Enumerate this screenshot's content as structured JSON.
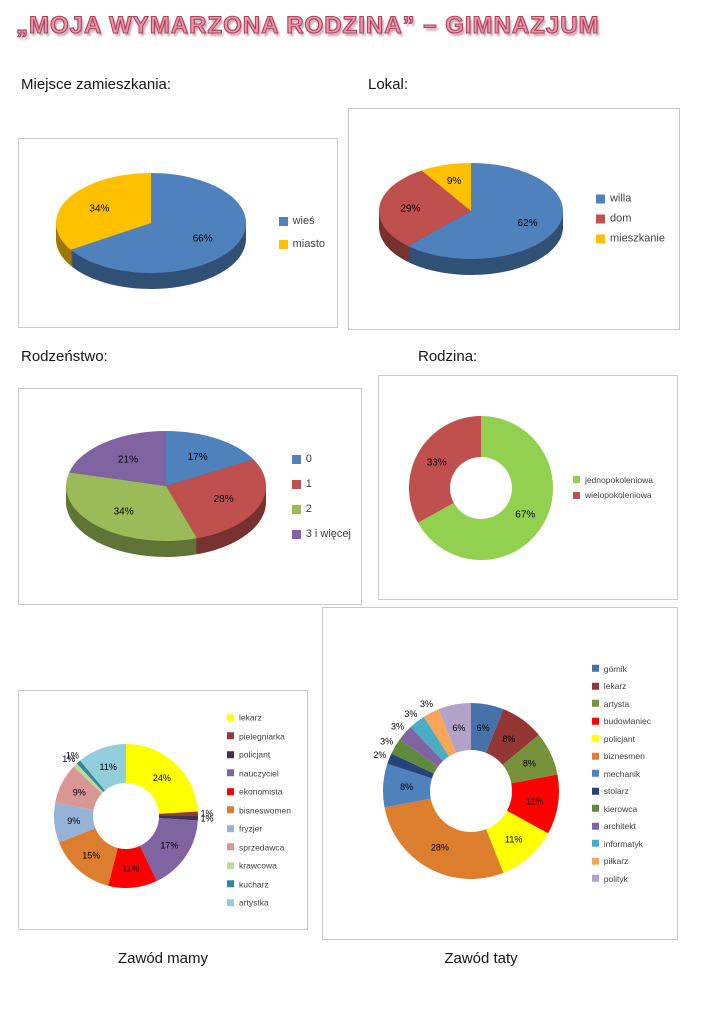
{
  "title": "„MOJA WYMARZONA RODZINA” – GIMNAZJUM",
  "headings": {
    "miejsce": "Miejsce zamieszkania:",
    "lokal": "Lokal:",
    "rodzenstwo": "Rodzeństwo:",
    "rodzina": "Rodzina:"
  },
  "captions": {
    "mama": "Zawód mamy",
    "tata": "Zawód taty"
  },
  "chart_data": [
    {
      "id": "miejsce-zamieszkania",
      "type": "pie",
      "style": "3d",
      "title": "Miejsce zamieszkania:",
      "unit": "%",
      "legend_position": "right",
      "categories": [
        "wieś",
        "miasto"
      ],
      "values": [
        66,
        34
      ],
      "colors": [
        "#4F81BD",
        "#FFC000"
      ]
    },
    {
      "id": "lokal",
      "type": "pie",
      "style": "3d",
      "title": "Lokal:",
      "unit": "%",
      "legend_position": "right",
      "categories": [
        "willa",
        "dom",
        "mieszkanie"
      ],
      "values": [
        62,
        29,
        9
      ],
      "colors": [
        "#4F81BD",
        "#C0504D",
        "#FFC000"
      ]
    },
    {
      "id": "rodzenstwo",
      "type": "pie",
      "style": "3d",
      "title": "Rodzeństwo:",
      "unit": "%",
      "legend_position": "right",
      "categories": [
        "0",
        "1",
        "2",
        "3 i więcej"
      ],
      "values": [
        17,
        28,
        34,
        21
      ],
      "colors": [
        "#4F81BD",
        "#C0504D",
        "#9BBB59",
        "#8064A2"
      ]
    },
    {
      "id": "rodzina",
      "type": "donut",
      "style": "flat",
      "title": "Rodzina:",
      "unit": "%",
      "legend_position": "right",
      "categories": [
        "jednopokoleniowa",
        "wielopokoleniowa"
      ],
      "values": [
        67,
        33
      ],
      "colors": [
        "#92D050",
        "#C0504D"
      ]
    },
    {
      "id": "zawod-mamy",
      "type": "donut",
      "style": "flat",
      "title": "Zawód mamy",
      "unit": "%",
      "legend_position": "right",
      "categories": [
        "lekarz",
        "pielegniarka",
        "policjant",
        "nauczyciel",
        "ekonomista",
        "bisneswomen",
        "fryzjer",
        "sprzedawca",
        "krawcowa",
        "kucharz",
        "artystka"
      ],
      "values": [
        24,
        1,
        1,
        17,
        11,
        15,
        9,
        9,
        1,
        1,
        11
      ],
      "colors": [
        "#FFFF00",
        "#953735",
        "#403152",
        "#8064A2",
        "#FF0000",
        "#DD7E2E",
        "#95B3D7",
        "#D99694",
        "#C3D69B",
        "#31859C",
        "#92CDDC"
      ]
    },
    {
      "id": "zawod-taty",
      "type": "donut",
      "style": "flat",
      "title": "Zawód taty",
      "unit": "%",
      "legend_position": "right",
      "categories": [
        "górnik",
        "lekarz",
        "artysta",
        "budowlaniec",
        "policjant",
        "biznesmen",
        "mechanik",
        "stolarz",
        "kierowca",
        "architekt",
        "informatyk",
        "piłkarz",
        "polityk"
      ],
      "values": [
        6,
        8,
        8,
        11,
        11,
        28,
        8,
        2,
        3,
        3,
        3,
        3,
        6
      ],
      "colors": [
        "#4572A7",
        "#943634",
        "#76933C",
        "#FF0000",
        "#FFFF00",
        "#DD7E2E",
        "#4F81BD",
        "#264478",
        "#5F8A3E",
        "#8064A2",
        "#4BACC6",
        "#F9A65B",
        "#B3A2C7"
      ]
    }
  ]
}
